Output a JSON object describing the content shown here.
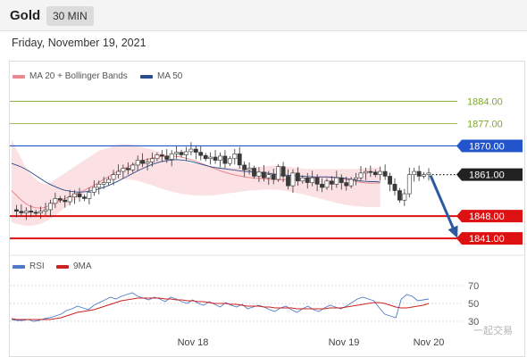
{
  "header": {
    "title": "Gold",
    "timeframe": "30 MIN"
  },
  "date_label": "Friday, November 19, 2021",
  "legend": {
    "main": [
      {
        "label": "MA 20 + Bollinger Bands",
        "color": "#e8898f"
      },
      {
        "label": "MA 50",
        "color": "#2b4c8c"
      }
    ],
    "rsi": [
      {
        "label": "RSI",
        "color": "#4d79c7"
      },
      {
        "label": "9MA",
        "color": "#cc2222"
      }
    ]
  },
  "watermark": "一起交易",
  "chart_data": [
    {
      "type": "candlestick",
      "title": "Gold",
      "timeframe": "30 MIN",
      "ylim": [
        1836,
        1890
      ],
      "x_ticks": [
        "Nov 18",
        "Nov 19",
        "Nov 20"
      ],
      "levels": [
        {
          "label": "1884.00",
          "value": 1884,
          "color": "#7ea62d",
          "style": "thin"
        },
        {
          "label": "1877.00",
          "value": 1877,
          "color": "#7ea62d",
          "style": "thin"
        },
        {
          "label": "1870.00",
          "value": 1870,
          "color": "#2255cc",
          "style": "solid"
        },
        {
          "label": "1861.00",
          "value": 1861,
          "color": "#222222",
          "style": "dotted"
        },
        {
          "label": "1848.00",
          "value": 1848,
          "color": "#dd1111",
          "style": "thick"
        },
        {
          "label": "1841.00",
          "value": 1841,
          "color": "#dd1111",
          "style": "thick"
        }
      ],
      "projection": {
        "from": 1861,
        "to": 1841,
        "color": "#2c5aa0"
      },
      "close_series": [
        1850,
        1849.5,
        1849,
        1849.6,
        1849.2,
        1849,
        1849.5,
        1850,
        1852,
        1853.5,
        1853,
        1852.5,
        1854,
        1855,
        1854,
        1853.5,
        1855.5,
        1857,
        1858,
        1858.5,
        1859.5,
        1861,
        1862,
        1863,
        1862.5,
        1864,
        1865.5,
        1864.5,
        1865,
        1866,
        1867.2,
        1866.8,
        1865.8,
        1867.5,
        1868,
        1867.2,
        1868.2,
        1869,
        1868,
        1867,
        1866,
        1866.5,
        1865.5,
        1866.8,
        1864.5,
        1866,
        1867.5,
        1864,
        1862.5,
        1863,
        1860.5,
        1861.8,
        1860,
        1861,
        1859.5,
        1863.5,
        1860.5,
        1857.5,
        1861.5,
        1859,
        1860,
        1858.5,
        1860,
        1858,
        1857,
        1859,
        1858,
        1860,
        1858.5,
        1857.5,
        1859.5,
        1860,
        1861.5,
        1862,
        1861.8,
        1861,
        1862,
        1860.5,
        1858,
        1856,
        1853,
        1855,
        1861,
        1862,
        1860.5,
        1861,
        1861.5
      ],
      "ma50_series": [
        1864.5,
        1864,
        1863.4,
        1862.6,
        1861.7,
        1860.7,
        1859.7,
        1858.7,
        1857.9,
        1857.2,
        1856.6,
        1856.1,
        1855.8,
        1855.6,
        1855.5,
        1855.6,
        1855.8,
        1856.1,
        1856.5,
        1857,
        1857.6,
        1858.3,
        1859,
        1859.8,
        1860.6,
        1861.4,
        1862.2,
        1862.9,
        1863.6,
        1864.2,
        1864.7,
        1865.1,
        1865.4,
        1865.6,
        1865.7,
        1865.6,
        1865.4,
        1865.1,
        1864.7,
        1864.3,
        1863.9,
        1863.5,
        1863.2,
        1863,
        1862.8,
        1862.6,
        1862.4,
        1862.2,
        1862,
        1861.9,
        1861.8,
        1861.7,
        1861.6,
        1861.4,
        1861.2,
        1861,
        1860.9,
        1860.8,
        1860.7,
        1860.6,
        1860.5,
        1860.4,
        1860.3,
        1860.3,
        1860.3,
        1860.3,
        1860.2,
        1860.1,
        1860,
        1859.8,
        1859.5,
        1859.2,
        1859,
        1858.9,
        1858.8,
        1858.8,
        1858.7
      ],
      "ma20_series": [
        1856,
        1854.5,
        1853,
        1851.8,
        1851,
        1850.6,
        1850.5,
        1850.8,
        1851.4,
        1852.1,
        1852.8,
        1853.5,
        1854.2,
        1854.8,
        1855.4,
        1856.1,
        1856.9,
        1857.7,
        1858.6,
        1859.5,
        1860.4,
        1861.3,
        1862.1,
        1862.8,
        1863.5,
        1864.1,
        1864.7,
        1865.3,
        1865.8,
        1866.2,
        1866.5,
        1866.7,
        1866.8,
        1866.8,
        1866.7,
        1866.5,
        1866.1,
        1865.7,
        1865.2,
        1864.6,
        1864,
        1863.4,
        1862.8,
        1862.2,
        1861.7,
        1861.3,
        1860.9,
        1860.6,
        1860.3,
        1860.1,
        1859.9,
        1859.8,
        1859.7,
        1859.6,
        1859.5,
        1859.4,
        1859.4,
        1859.5,
        1859.6,
        1859.7,
        1859.8,
        1859.9,
        1860,
        1860.1,
        1860.2,
        1860.2,
        1860.1,
        1860,
        1859.8,
        1859.5,
        1859.2,
        1858.9,
        1858.6,
        1858.4,
        1858.3,
        1858.3,
        1858.4
      ],
      "band_upper": [
        1872,
        1869,
        1866,
        1863,
        1861,
        1859.5,
        1858.5,
        1858,
        1858.5,
        1859.5,
        1860.5,
        1861.5,
        1862.5,
        1863.5,
        1864.5,
        1865.5,
        1866.5,
        1867.5,
        1868.5,
        1869,
        1869.5,
        1870,
        1870.3,
        1870.5,
        1870.5,
        1870.3,
        1870,
        1869.6,
        1869.2,
        1868.8,
        1868.3,
        1867.8,
        1867.2,
        1866.6,
        1866,
        1865.5,
        1865,
        1864.6,
        1864.3,
        1864,
        1863.8,
        1863.6,
        1863.5,
        1863.4,
        1863.3,
        1863.2,
        1863.2,
        1863.2,
        1863.2,
        1863.3,
        1863.4,
        1863.5,
        1863.6,
        1863.7,
        1863.8,
        1863.8,
        1863.7,
        1863.5,
        1863.3,
        1863.1,
        1862.9,
        1862.8,
        1862.8,
        1862.8,
        1862.8,
        1862.8,
        1862.8,
        1862.8,
        1862.8,
        1862.8,
        1862.8,
        1862.8,
        1862.9,
        1863,
        1863.1,
        1863.2,
        1863.3
      ],
      "band_lower": [
        1846,
        1845.5,
        1845.2,
        1845,
        1845,
        1845.2,
        1845.6,
        1846.3,
        1847.2,
        1848.2,
        1849.4,
        1850.6,
        1851.8,
        1852.9,
        1854,
        1855,
        1856,
        1856.8,
        1857.6,
        1858.3,
        1858.8,
        1859.2,
        1859.4,
        1859.5,
        1859.5,
        1859.3,
        1859,
        1858.6,
        1858.1,
        1857.6,
        1857.1,
        1856.6,
        1856.1,
        1855.7,
        1855.3,
        1855,
        1854.8,
        1854.6,
        1854.5,
        1854.4,
        1854.4,
        1854.5,
        1854.6,
        1854.8,
        1855,
        1855.2,
        1855.4,
        1855.6,
        1855.8,
        1856,
        1856.1,
        1856.2,
        1856.3,
        1856.3,
        1856.3,
        1856.2,
        1856,
        1855.8,
        1855.5,
        1855.2,
        1854.9,
        1854.5,
        1854.1,
        1853.7,
        1853.3,
        1852.9,
        1852.5,
        1852.1,
        1851.8,
        1851.5,
        1851.3,
        1851.1,
        1851,
        1850.9,
        1850.8,
        1850.8,
        1850.8
      ]
    },
    {
      "type": "line",
      "title": "RSI",
      "ylim": [
        20,
        80
      ],
      "y_ticks": [
        70,
        50,
        30
      ],
      "series": [
        {
          "name": "RSI",
          "values": [
            32,
            31,
            31,
            32,
            30,
            31,
            33,
            34,
            36,
            38,
            42,
            44,
            47,
            45,
            43,
            48,
            51,
            54,
            57,
            55,
            58,
            60,
            62,
            58,
            56,
            54,
            57,
            55,
            52,
            57,
            55,
            52,
            50,
            54,
            50,
            48,
            52,
            49,
            46,
            51,
            48,
            46,
            49,
            44,
            46,
            48,
            46,
            43,
            41,
            45,
            47,
            43,
            40,
            44,
            47,
            43,
            41,
            45,
            48,
            46,
            44,
            47,
            51,
            55,
            57,
            55,
            53,
            45,
            38,
            36,
            34,
            55,
            60,
            58,
            53,
            54,
            55
          ]
        },
        {
          "name": "9MA",
          "values": [
            33,
            32,
            32,
            32,
            32,
            32,
            32,
            32,
            33,
            34,
            36,
            38,
            40,
            41,
            42,
            43,
            45,
            47,
            49,
            51,
            53,
            54,
            55,
            56,
            56,
            56,
            56,
            56,
            55,
            55,
            54,
            54,
            53,
            53,
            52,
            52,
            51,
            50,
            50,
            50,
            49,
            49,
            48,
            47,
            47,
            47,
            46,
            46,
            45,
            45,
            45,
            45,
            44,
            44,
            44,
            44,
            44,
            44,
            45,
            45,
            45,
            46,
            47,
            48,
            49,
            50,
            51,
            51,
            50,
            48,
            46,
            45,
            45,
            46,
            47,
            48,
            50
          ]
        }
      ]
    }
  ]
}
